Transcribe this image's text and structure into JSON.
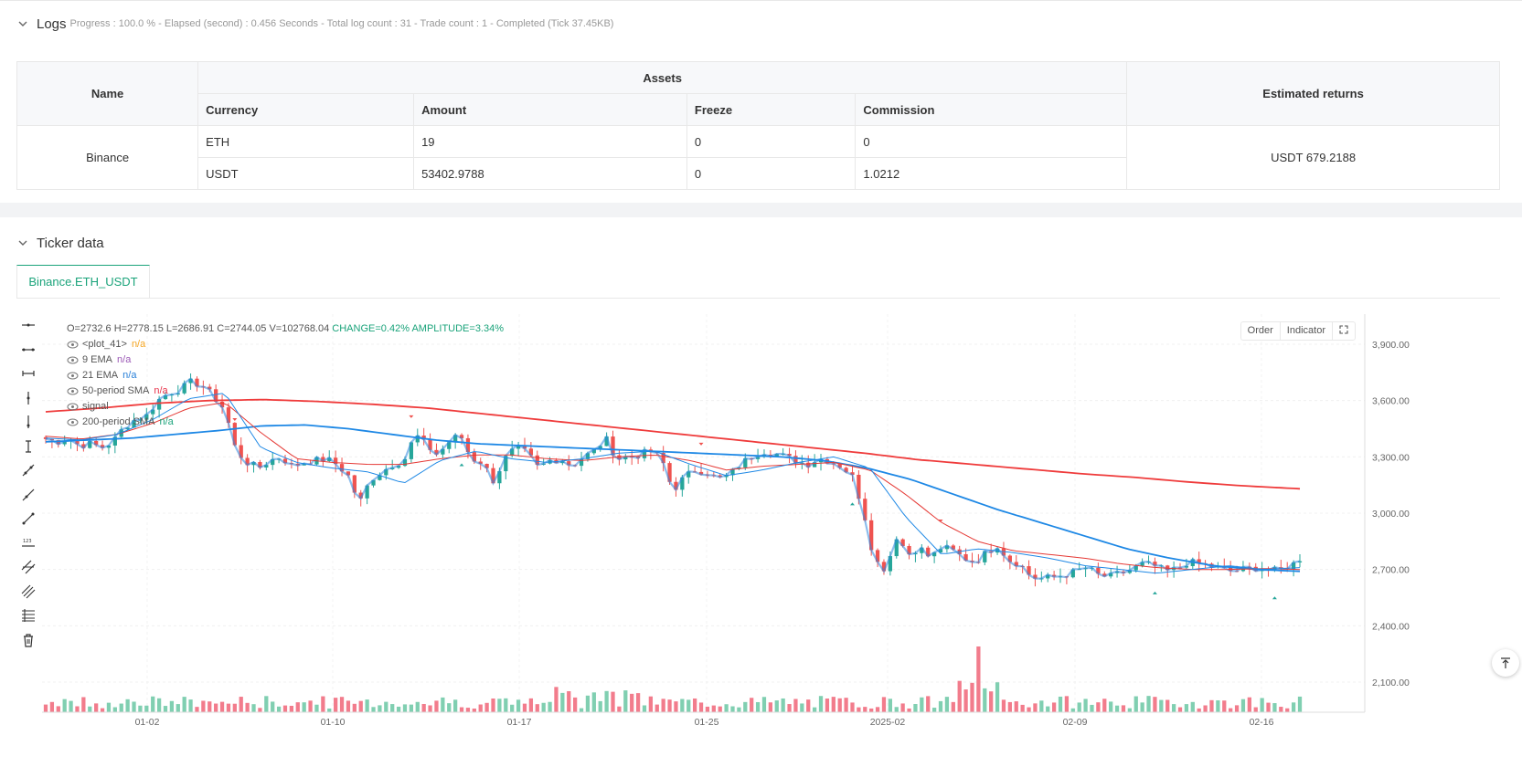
{
  "logs": {
    "title": "Logs",
    "status": "Progress : 100.0 % - Elapsed (second) : 0.456  Seconds - Total log count : 31 - Trade count : 1 - Completed (Tick 37.45KB)"
  },
  "assets_table": {
    "headers": {
      "name": "Name",
      "assets": "Assets",
      "estimated": "Estimated returns",
      "currency": "Currency",
      "amount": "Amount",
      "freeze": "Freeze",
      "commission": "Commission"
    },
    "exchange": "Binance",
    "rows": [
      {
        "currency": "ETH",
        "amount": "19",
        "freeze": "0",
        "commission": "0"
      },
      {
        "currency": "USDT",
        "amount": "53402.9788",
        "freeze": "0",
        "commission": "1.0212"
      }
    ],
    "estimated_returns": "USDT 679.2188"
  },
  "ticker": {
    "title": "Ticker data",
    "tab": "Binance.ETH_USDT"
  },
  "chart_controls": {
    "order": "Order",
    "indicator": "Indicator"
  },
  "legend": {
    "ohlc": {
      "o": "O=2732.6",
      "h": "H=2778.15",
      "l": "L=2686.91",
      "c": "C=2744.05",
      "v": "V=102768.04",
      "change": "CHANGE=0.42%",
      "amplitude": "AMPLITUDE=3.34%"
    },
    "series": [
      {
        "name": "<plot_41>",
        "value": "n/a",
        "color": "#f5a623"
      },
      {
        "name": "9 EMA",
        "value": "n/a",
        "color": "#9b59b6"
      },
      {
        "name": "21 EMA",
        "value": "n/a",
        "color": "#2980d9"
      },
      {
        "name": "50-period SMA",
        "value": "n/a",
        "color": "#e8334a"
      },
      {
        "name": "signal",
        "value": "",
        "color": "#555555"
      },
      {
        "name": "200-period SMA",
        "value": "n/a",
        "color": "#1aa37a"
      }
    ]
  },
  "chart_data": {
    "type": "candlestick",
    "symbol": "Binance.ETH_USDT",
    "x_ticks": [
      "01-02",
      "01-10",
      "01-17",
      "01-25",
      "2025-02",
      "02-09",
      "02-16"
    ],
    "y_ticks": [
      "3,900.00",
      "3,600.00",
      "3,300.00",
      "3,000.00",
      "2,700.00",
      "2,400.00",
      "2,100.00"
    ],
    "ylim": [
      2000,
      4050
    ],
    "bar_count": 200,
    "close_path": [
      3395,
      3380,
      3400,
      3360,
      3370,
      3350,
      3380,
      3460,
      3500,
      3520,
      3600,
      3640,
      3660,
      3700,
      3680,
      3620,
      3550,
      3330,
      3270,
      3240,
      3280,
      3300,
      3250,
      3270,
      3280,
      3290,
      3260,
      3200,
      3050,
      3180,
      3220,
      3260,
      3280,
      3420,
      3360,
      3310,
      3380,
      3420,
      3290,
      3270,
      3170,
      3290,
      3350,
      3320,
      3240,
      3280,
      3290,
      3250,
      3300,
      3330,
      3400,
      3290,
      3300,
      3310,
      3330,
      3290,
      3120,
      3190,
      3230,
      3220,
      3180,
      3200,
      3260,
      3300,
      3330,
      3320,
      3300,
      3280,
      3260,
      3290,
      3280,
      3250,
      3200,
      3020,
      2750,
      2700,
      2880,
      2780,
      2820,
      2760,
      2820,
      2800,
      2760,
      2740,
      2790,
      2830,
      2750,
      2730,
      2660,
      2650,
      2660,
      2670,
      2690,
      2710,
      2670,
      2660,
      2680,
      2700,
      2730,
      2720,
      2690,
      2700,
      2740,
      2730,
      2720,
      2700,
      2690,
      2700,
      2710,
      2700,
      2690,
      2720,
      2744
    ],
    "sma200": [
      3540,
      3560,
      3585,
      3600,
      3605,
      3595,
      3580,
      3560,
      3530,
      3500,
      3470,
      3440,
      3410,
      3380,
      3350,
      3320,
      3285,
      3260,
      3235,
      3210,
      3190,
      3165,
      3145,
      3130
    ],
    "sma50": [
      3380,
      3390,
      3400,
      3420,
      3440,
      3465,
      3470,
      3450,
      3420,
      3390,
      3370,
      3360,
      3350,
      3340,
      3330,
      3320,
      3310,
      3300,
      3280,
      3240,
      3180,
      3100,
      3020,
      2950,
      2880,
      2810,
      2760,
      2720,
      2700,
      2690
    ],
    "ema21": [
      3410,
      3395,
      3420,
      3480,
      3560,
      3590,
      3430,
      3290,
      3270,
      3260,
      3260,
      3290,
      3310,
      3310,
      3290,
      3280,
      3300,
      3310,
      3280,
      3230,
      3250,
      3260,
      3270,
      3230,
      3100,
      2950,
      2850,
      2800,
      2780,
      2760,
      2730,
      2710,
      2700,
      2700,
      2705,
      2700
    ],
    "ema9": [
      3400,
      3390,
      3420,
      3500,
      3610,
      3640,
      3350,
      3270,
      3240,
      3220,
      3160,
      3280,
      3330,
      3290,
      3270,
      3290,
      3320,
      3330,
      3260,
      3200,
      3230,
      3270,
      3300,
      3240,
      2980,
      2780,
      2810,
      2790,
      2760,
      2720,
      2700,
      2680,
      2700,
      2720,
      2700,
      2710
    ],
    "volume_spike_index": 148
  }
}
